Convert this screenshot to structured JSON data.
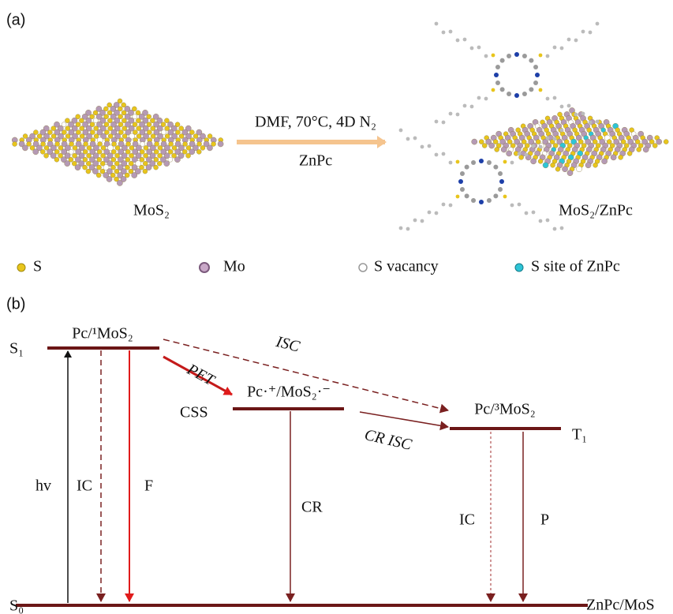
{
  "panel_a": {
    "label": "(a)",
    "reaction_condition": "DMF, 70°C, 4D N₂",
    "reagent": "ZnPc",
    "reactant": "MoS₂",
    "product": "MoS₂/ZnPc",
    "legend": [
      "S",
      "Mo",
      "S vacancy",
      "S site of ZnPc"
    ]
  },
  "panel_b": {
    "label": "(b)",
    "levels": {
      "s1_symbol": "S₁",
      "s1_state": "Pc/¹MoS₂",
      "css_symbol": "CSS",
      "css_state": "Pc·⁺/MoS₂·⁻",
      "t1_symbol": "T₁",
      "t1_state": "Pc/³MoS₂",
      "s0_symbol": "S₀",
      "s0_state": "ZnPc/MoS"
    },
    "transitions": {
      "excitation": "hv",
      "s1_ic": "IC",
      "fluorescence": "F",
      "pet": "PET",
      "isc": "ISC",
      "cr": "CR",
      "cr_isc": "CR ISC",
      "t1_ic": "IC",
      "phosphorescence": "P"
    }
  }
}
